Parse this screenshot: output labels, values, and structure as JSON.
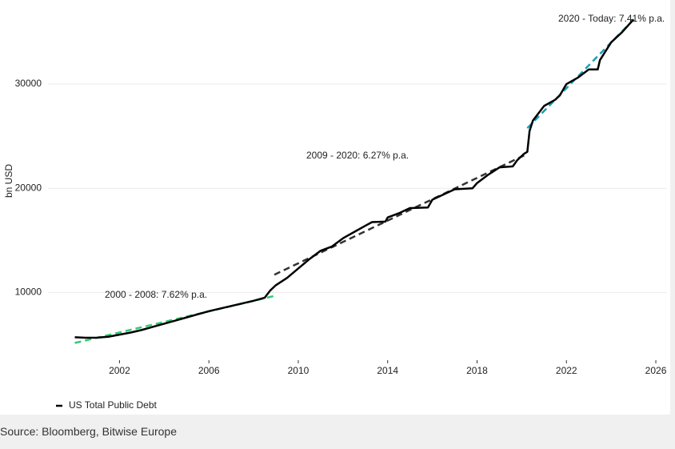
{
  "chart_data": {
    "type": "line",
    "y_label": "bn USD",
    "x": [
      2000,
      2000.5,
      2001,
      2001.5,
      2002,
      2002.5,
      2003,
      2003.5,
      2004,
      2004.5,
      2005,
      2005.5,
      2006,
      2006.5,
      2007,
      2007.5,
      2008,
      2008.5,
      2008.75,
      2009,
      2009.5,
      2010,
      2010.5,
      2011,
      2011.5,
      2012,
      2012.5,
      2013,
      2013.3,
      2013.9,
      2014,
      2014.5,
      2015,
      2015.8,
      2016,
      2016.5,
      2017,
      2017.8,
      2018,
      2018.5,
      2019,
      2019.6,
      2019.8,
      2020.1,
      2020.25,
      2020.35,
      2020.5,
      2021,
      2021.5,
      2021.7,
      2022,
      2022.5,
      2023,
      2023.4,
      2023.5,
      2024,
      2024.5,
      2025
    ],
    "series": [
      {
        "name": "US Total Public Debt",
        "color": "#000000",
        "values": [
          5700,
          5650,
          5660,
          5750,
          5950,
          6150,
          6400,
          6700,
          7000,
          7300,
          7600,
          7900,
          8200,
          8450,
          8700,
          8950,
          9200,
          9500,
          10200,
          10700,
          11400,
          12300,
          13200,
          14000,
          14400,
          15200,
          15800,
          16400,
          16750,
          16800,
          17200,
          17600,
          18100,
          18150,
          18900,
          19400,
          19900,
          20000,
          20500,
          21300,
          22000,
          22100,
          22700,
          23300,
          23500,
          25500,
          26500,
          27900,
          28500,
          28900,
          30000,
          30600,
          31400,
          31400,
          32300,
          34000,
          35000,
          36200
        ]
      }
    ],
    "trend_lines": [
      {
        "label": "2000 - 2008: 7.62% p.a.",
        "color": "#2ecc71",
        "x": [
          2000,
          2009
        ],
        "values": [
          5150,
          9700
        ]
      },
      {
        "label": "2009 - 2020: 6.27% p.a.",
        "color": "#333333",
        "x": [
          2008.93,
          2020.25
        ],
        "values": [
          11700,
          23300
        ]
      },
      {
        "label": "2020 - Today: 7.41% p.a.",
        "color": "#1a9fb5",
        "x": [
          2020.25,
          2025.1
        ],
        "values": [
          25770,
          36400
        ]
      }
    ],
    "xlim": [
      1998.8,
      2026.5
    ],
    "ylim": [
      3500,
      37300
    ],
    "xticks": [
      2002,
      2006,
      2010,
      2014,
      2018,
      2022,
      2026
    ],
    "yticks": [
      10000,
      20000,
      30000
    ],
    "grid": true,
    "legend_position": "bottom-left"
  },
  "source": "Source: Bloomberg, Bitwise Europe"
}
